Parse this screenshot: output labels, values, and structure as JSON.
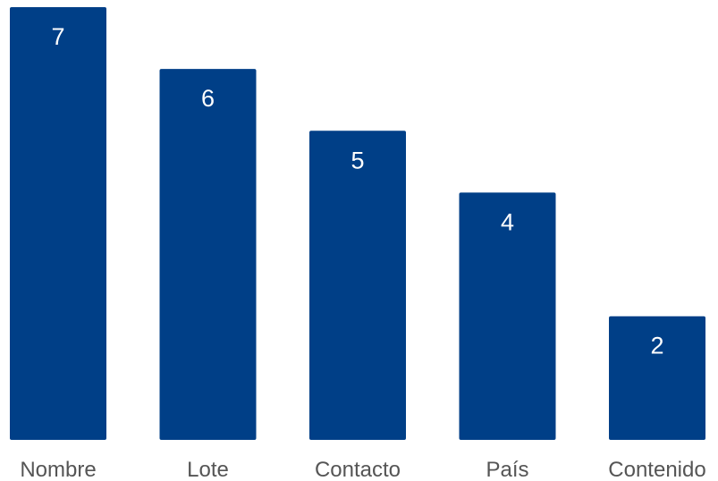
{
  "colors": {
    "bar": "#003f87",
    "value_text": "#ffffff",
    "tick_text": "#555555",
    "background": "#ffffff"
  },
  "chart_data": {
    "type": "bar",
    "categories": [
      "Nombre",
      "Lote",
      "Contacto",
      "País",
      "Contenido"
    ],
    "values": [
      7,
      6,
      5,
      4,
      2
    ],
    "title": "",
    "xlabel": "",
    "ylabel": "",
    "ylim": [
      0,
      7
    ],
    "grid": false,
    "legend": "none",
    "data_labels": "inside-top"
  }
}
